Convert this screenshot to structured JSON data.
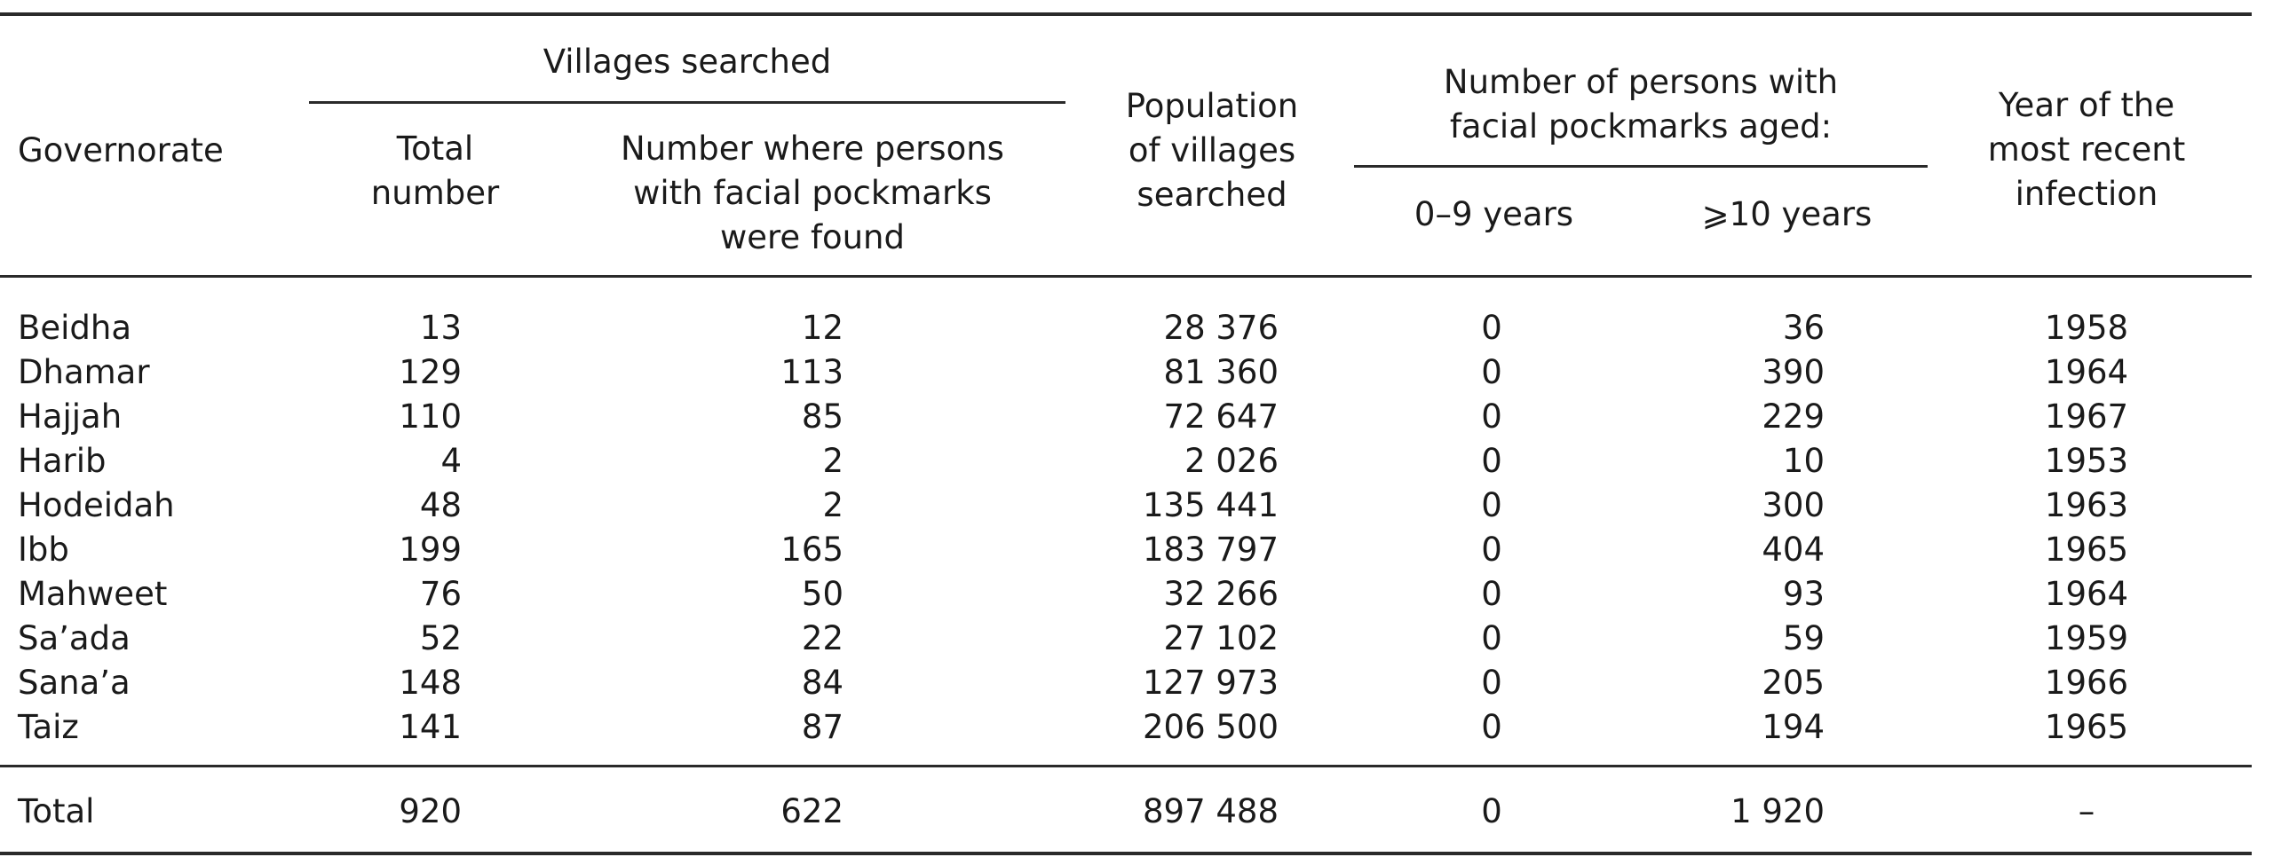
{
  "headers": {
    "governorate": "Governorate",
    "villages_searched": "Villages searched",
    "total_number": "Total\nnumber",
    "number_found": "Number where persons\nwith facial pockmarks\nwere found",
    "population": "Population\nof villages\nsearched",
    "persons_group": "Number of persons with\nfacial pockmarks aged:",
    "age_0_9": "0–9 years",
    "age_10_plus": "⩾10 years",
    "year_recent": "Year of the\nmost recent\ninfection"
  },
  "rows": [
    {
      "governorate": "Beidha",
      "total": "13",
      "found": "12",
      "population": "28 376",
      "age_0_9": "0",
      "age_10": "36",
      "year": "1958"
    },
    {
      "governorate": "Dhamar",
      "total": "129",
      "found": "113",
      "population": "81 360",
      "age_0_9": "0",
      "age_10": "390",
      "year": "1964"
    },
    {
      "governorate": "Hajjah",
      "total": "110",
      "found": "85",
      "population": "72 647",
      "age_0_9": "0",
      "age_10": "229",
      "year": "1967"
    },
    {
      "governorate": "Harib",
      "total": "4",
      "found": "2",
      "population": "2 026",
      "age_0_9": "0",
      "age_10": "10",
      "year": "1953"
    },
    {
      "governorate": "Hodeidah",
      "total": "48",
      "found": "2",
      "population": "135 441",
      "age_0_9": "0",
      "age_10": "300",
      "year": "1963"
    },
    {
      "governorate": "Ibb",
      "total": "199",
      "found": "165",
      "population": "183 797",
      "age_0_9": "0",
      "age_10": "404",
      "year": "1965"
    },
    {
      "governorate": "Mahweet",
      "total": "76",
      "found": "50",
      "population": "32 266",
      "age_0_9": "0",
      "age_10": "93",
      "year": "1964"
    },
    {
      "governorate": "Sa’ada",
      "total": "52",
      "found": "22",
      "population": "27 102",
      "age_0_9": "0",
      "age_10": "59",
      "year": "1959"
    },
    {
      "governorate": "Sana’a",
      "total": "148",
      "found": "84",
      "population": "127 973",
      "age_0_9": "0",
      "age_10": "205",
      "year": "1966"
    },
    {
      "governorate": "Taiz",
      "total": "141",
      "found": "87",
      "population": "206 500",
      "age_0_9": "0",
      "age_10": "194",
      "year": "1965"
    }
  ],
  "total_row": {
    "label": "Total",
    "total": "920",
    "found": "622",
    "population": "897 488",
    "age_0_9": "0",
    "age_10": "1 920",
    "year": "–"
  }
}
